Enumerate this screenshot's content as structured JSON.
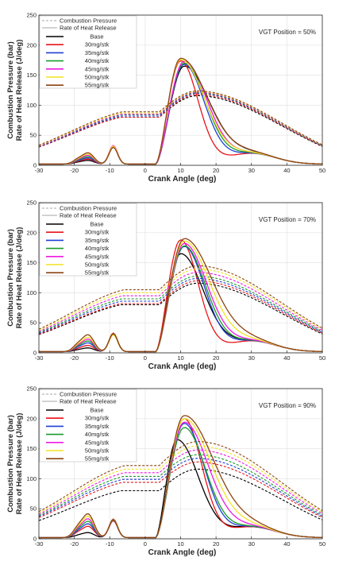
{
  "figure": {
    "ylabel_line1": "Combustion Pressure (bar)",
    "ylabel_line2": "Rate of Heat Release (J/deg)",
    "xlabel": "Crank Angle (deg)"
  },
  "chart_data": [
    {
      "type": "line",
      "annotation": "VGT Position = 50%",
      "xlabel": "Crank Angle (deg)",
      "ylabel": "Combustion Pressure (bar) / Rate of Heat Release (J/deg)",
      "xlim": [
        -30,
        50
      ],
      "ylim": [
        0,
        250
      ],
      "xticks": [
        -30,
        -20,
        -10,
        0,
        10,
        20,
        30,
        40,
        50
      ],
      "yticks": [
        0,
        50,
        100,
        150,
        200,
        250
      ],
      "grid": true,
      "legend_position": "top-left",
      "legend": {
        "style_entries": [
          {
            "label": "Combustion Pressure",
            "style": "dashed",
            "color": "#a6a6a6"
          },
          {
            "label": "Rate of Heat Release",
            "style": "solid",
            "color": "#a6a6a6"
          }
        ],
        "series_entries": [
          "Base",
          "30mg/stk",
          "35mg/stk",
          "40mg/stk",
          "45mg/stk",
          "50mg/stk",
          "55mg/stk"
        ]
      },
      "series": [
        {
          "name": "Base",
          "color": "#000000",
          "pressure_peak": 116,
          "pressure_peak_x": 15,
          "pressure_tdc": 80,
          "hrr_peak": 163,
          "hrr_peak_x": 11,
          "hrr_fall": 19,
          "pilot_main": 29,
          "pilot_early": 6
        },
        {
          "name": "30mg/stk",
          "color": "#e8141a",
          "pressure_peak": 118,
          "pressure_peak_x": 15,
          "pressure_tdc": 80,
          "hrr_peak": 172,
          "hrr_peak_x": 10,
          "hrr_fall": 13,
          "pilot_main": 31,
          "pilot_early": 8
        },
        {
          "name": "35mg/stk",
          "color": "#1f3fd4",
          "pressure_peak": 120,
          "pressure_peak_x": 15,
          "pressure_tdc": 82,
          "hrr_peak": 166,
          "hrr_peak_x": 11,
          "hrr_fall": 15,
          "pilot_main": 30,
          "pilot_early": 10
        },
        {
          "name": "40mg/stk",
          "color": "#1a9a2a",
          "pressure_peak": 121,
          "pressure_peak_x": 15,
          "pressure_tdc": 84,
          "hrr_peak": 168,
          "hrr_peak_x": 11,
          "hrr_fall": 16,
          "pilot_main": 30,
          "pilot_early": 12
        },
        {
          "name": "45mg/stk",
          "color": "#ee1be0",
          "pressure_peak": 122,
          "pressure_peak_x": 15,
          "pressure_tdc": 85,
          "hrr_peak": 171,
          "hrr_peak_x": 11,
          "hrr_fall": 17,
          "pilot_main": 31,
          "pilot_early": 14
        },
        {
          "name": "50mg/stk",
          "color": "#f2e224",
          "pressure_peak": 123,
          "pressure_peak_x": 15,
          "pressure_tdc": 87,
          "hrr_peak": 174,
          "hrr_peak_x": 10,
          "hrr_fall": 18,
          "pilot_main": 30,
          "pilot_early": 16
        },
        {
          "name": "55mg/stk",
          "color": "#8b4513",
          "pressure_peak": 124,
          "pressure_peak_x": 15,
          "pressure_tdc": 89,
          "hrr_peak": 176,
          "hrr_peak_x": 10,
          "hrr_fall": 20,
          "pilot_main": 28,
          "pilot_early": 18
        }
      ]
    },
    {
      "type": "line",
      "annotation": "VGT Position = 70%",
      "xlabel": "Crank Angle (deg)",
      "ylabel": "Combustion Pressure (bar) / Rate of Heat Release (J/deg)",
      "xlim": [
        -30,
        50
      ],
      "ylim": [
        0,
        250
      ],
      "xticks": [
        -30,
        -20,
        -10,
        0,
        10,
        20,
        30,
        40,
        50
      ],
      "yticks": [
        0,
        50,
        100,
        150,
        200,
        250
      ],
      "grid": true,
      "legend_position": "top-left",
      "legend": {
        "style_entries": [
          {
            "label": "Combustion Pressure",
            "style": "dashed",
            "color": "#a6a6a6"
          },
          {
            "label": "Rate of Heat Release",
            "style": "solid",
            "color": "#a6a6a6"
          }
        ],
        "series_entries": [
          "Base",
          "30mg/stk",
          "35mg/stk",
          "40mg/stk",
          "45mg/stk",
          "50mg/stk",
          "55mg/stk"
        ]
      },
      "series": [
        {
          "name": "Base",
          "color": "#000000",
          "pressure_peak": 116,
          "pressure_peak_x": 15,
          "pressure_tdc": 80,
          "hrr_peak": 163,
          "hrr_peak_x": 10,
          "hrr_fall": 17,
          "pilot_main": 30,
          "pilot_early": 6
        },
        {
          "name": "30mg/stk",
          "color": "#e8141a",
          "pressure_peak": 120,
          "pressure_peak_x": 15,
          "pressure_tdc": 82,
          "hrr_peak": 186,
          "hrr_peak_x": 10,
          "hrr_fall": 13,
          "pilot_main": 31,
          "pilot_early": 10
        },
        {
          "name": "35mg/stk",
          "color": "#1f3fd4",
          "pressure_peak": 124,
          "pressure_peak_x": 15,
          "pressure_tdc": 86,
          "hrr_peak": 175,
          "hrr_peak_x": 11,
          "hrr_fall": 15,
          "pilot_main": 29,
          "pilot_early": 14
        },
        {
          "name": "40mg/stk",
          "color": "#1a9a2a",
          "pressure_peak": 128,
          "pressure_peak_x": 15,
          "pressure_tdc": 90,
          "hrr_peak": 176,
          "hrr_peak_x": 11,
          "hrr_fall": 16,
          "pilot_main": 30,
          "pilot_early": 17
        },
        {
          "name": "45mg/stk",
          "color": "#ee1be0",
          "pressure_peak": 134,
          "pressure_peak_x": 15,
          "pressure_tdc": 95,
          "hrr_peak": 180,
          "hrr_peak_x": 11,
          "hrr_fall": 17,
          "pilot_main": 29,
          "pilot_early": 20
        },
        {
          "name": "50mg/stk",
          "color": "#f2e224",
          "pressure_peak": 140,
          "pressure_peak_x": 15,
          "pressure_tdc": 100,
          "hrr_peak": 184,
          "hrr_peak_x": 11,
          "hrr_fall": 19,
          "pilot_main": 28,
          "pilot_early": 23
        },
        {
          "name": "55mg/stk",
          "color": "#8b4513",
          "pressure_peak": 145,
          "pressure_peak_x": 15,
          "pressure_tdc": 105,
          "hrr_peak": 188,
          "hrr_peak_x": 11,
          "hrr_fall": 21,
          "pilot_main": 30,
          "pilot_early": 27
        }
      ]
    },
    {
      "type": "line",
      "annotation": "VGT Position = 90%",
      "xlabel": "Crank Angle (deg)",
      "ylabel": "Combustion Pressure (bar) / Rate of Heat Release (J/deg)",
      "xlim": [
        -30,
        50
      ],
      "ylim": [
        0,
        250
      ],
      "xticks": [
        -30,
        -20,
        -10,
        0,
        10,
        20,
        30,
        40,
        50
      ],
      "yticks": [
        0,
        50,
        100,
        150,
        200,
        250
      ],
      "grid": true,
      "legend_position": "top-left",
      "legend": {
        "style_entries": [
          {
            "label": "Combustion Pressure",
            "style": "dashed",
            "color": "#a6a6a6"
          },
          {
            "label": "Rate of Heat Release",
            "style": "solid",
            "color": "#a6a6a6"
          }
        ],
        "series_entries": [
          "Base",
          "30mg/stk",
          "35mg/stk",
          "40mg/stk",
          "45mg/stk",
          "50mg/stk",
          "55mg/stk"
        ]
      },
      "series": [
        {
          "name": "Base",
          "color": "#000000",
          "pressure_peak": 116,
          "pressure_peak_x": 15,
          "pressure_tdc": 80,
          "hrr_peak": 163,
          "hrr_peak_x": 9,
          "hrr_fall": 16,
          "pilot_main": 30,
          "pilot_early": 8
        },
        {
          "name": "30mg/stk",
          "color": "#e8141a",
          "pressure_peak": 128,
          "pressure_peak_x": 15,
          "pressure_tdc": 94,
          "hrr_peak": 198,
          "hrr_peak_x": 11,
          "hrr_fall": 13,
          "pilot_main": 31,
          "pilot_early": 18
        },
        {
          "name": "35mg/stk",
          "color": "#1f3fd4",
          "pressure_peak": 134,
          "pressure_peak_x": 15,
          "pressure_tdc": 99,
          "hrr_peak": 190,
          "hrr_peak_x": 11,
          "hrr_fall": 15,
          "pilot_main": 29,
          "pilot_early": 22
        },
        {
          "name": "40mg/stk",
          "color": "#1a9a2a",
          "pressure_peak": 140,
          "pressure_peak_x": 15,
          "pressure_tdc": 104,
          "hrr_peak": 183,
          "hrr_peak_x": 11,
          "hrr_fall": 16,
          "pilot_main": 30,
          "pilot_early": 26
        },
        {
          "name": "45mg/stk",
          "color": "#ee1be0",
          "pressure_peak": 148,
          "pressure_peak_x": 15,
          "pressure_tdc": 110,
          "hrr_peak": 192,
          "hrr_peak_x": 11,
          "hrr_fall": 18,
          "pilot_main": 28,
          "pilot_early": 30
        },
        {
          "name": "50mg/stk",
          "color": "#f2e224",
          "pressure_peak": 155,
          "pressure_peak_x": 15,
          "pressure_tdc": 116,
          "hrr_peak": 198,
          "hrr_peak_x": 11,
          "hrr_fall": 20,
          "pilot_main": 29,
          "pilot_early": 34
        },
        {
          "name": "55mg/stk",
          "color": "#8b4513",
          "pressure_peak": 162,
          "pressure_peak_x": 15,
          "pressure_tdc": 122,
          "hrr_peak": 203,
          "hrr_peak_x": 11,
          "hrr_fall": 22,
          "pilot_main": 29,
          "pilot_early": 38
        }
      ]
    }
  ]
}
